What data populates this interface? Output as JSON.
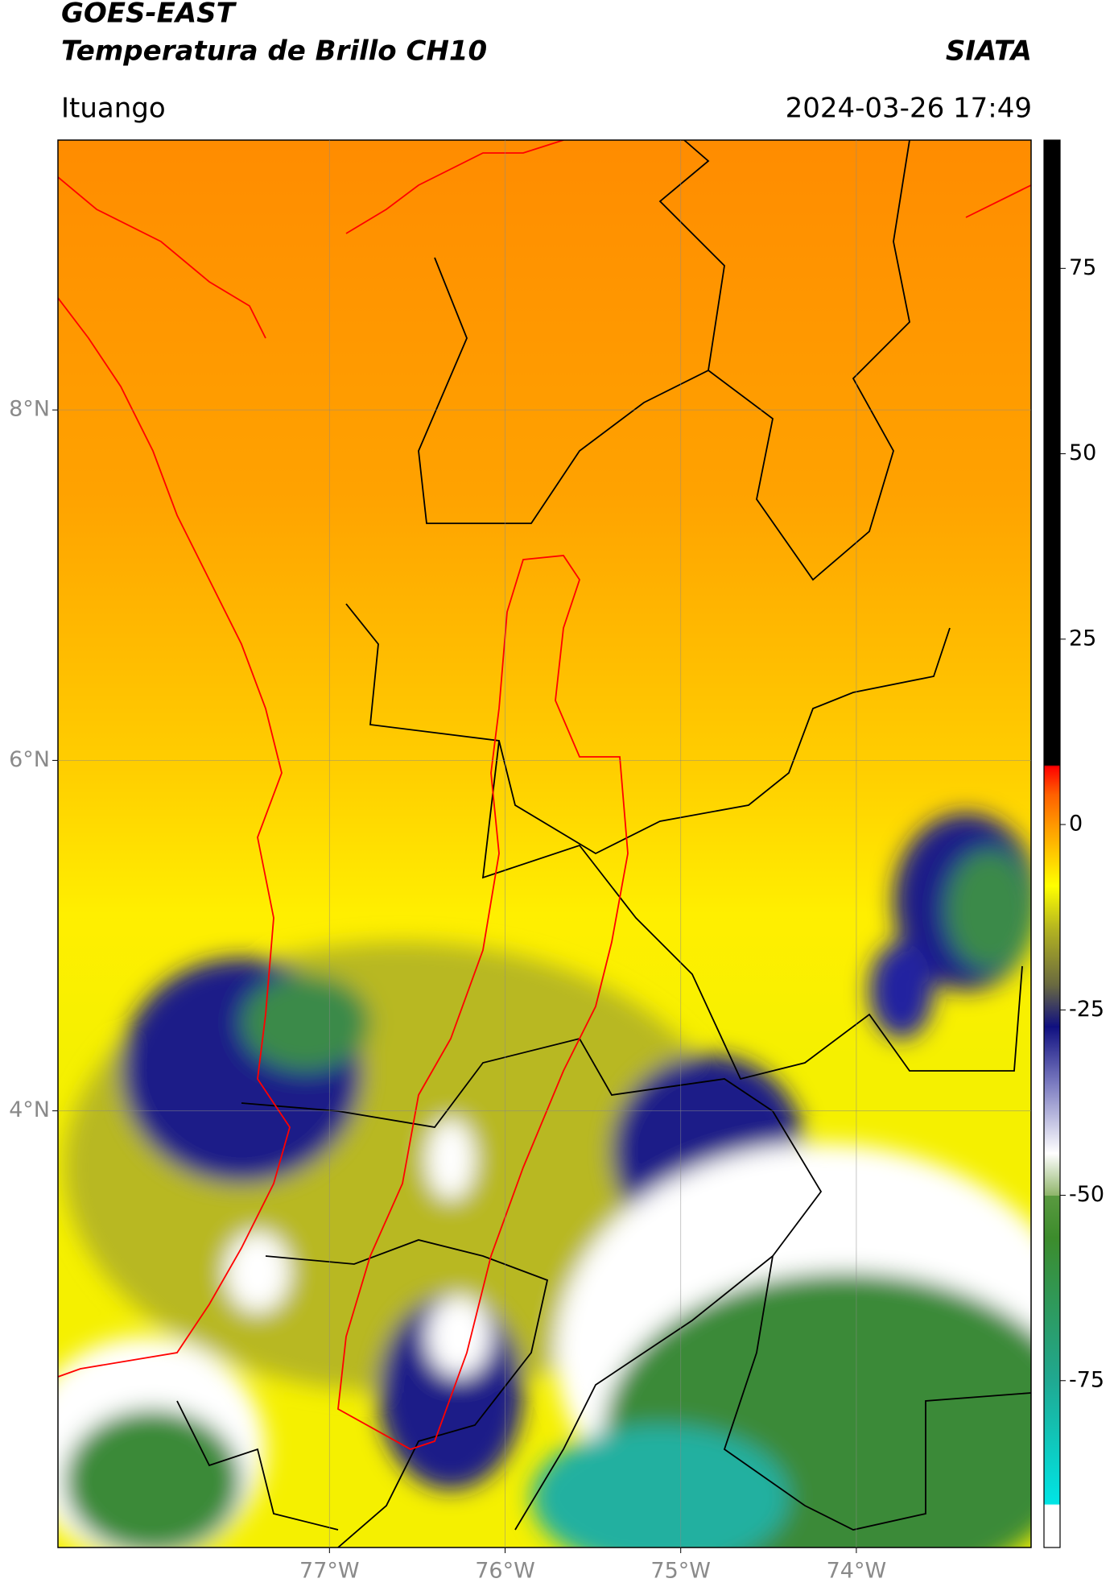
{
  "header": {
    "title": "GOES-EAST",
    "subtitle": "Temperatura de Brillo CH10",
    "brand": "SIATA",
    "location": "Ituango",
    "timestamp": "2024-03-26 17:49"
  },
  "map": {
    "lonlim": [
      -78.546,
      -73.005
    ],
    "latlim": [
      1.508,
      9.54
    ],
    "lon_ticks": [
      {
        "value": -77,
        "label": "77°W"
      },
      {
        "value": -76,
        "label": "76°W"
      },
      {
        "value": -75,
        "label": "75°W"
      },
      {
        "value": -74,
        "label": "74°W"
      }
    ],
    "lat_ticks": [
      {
        "value": 8,
        "label": "8°N"
      },
      {
        "value": 6,
        "label": "6°N"
      },
      {
        "value": 4,
        "label": "4°N"
      }
    ],
    "grid": true
  },
  "colorbar": {
    "lim": [
      -97.5,
      92.3
    ],
    "ticks": [
      75,
      50,
      25,
      0,
      -25,
      -50,
      -75
    ]
  }
}
